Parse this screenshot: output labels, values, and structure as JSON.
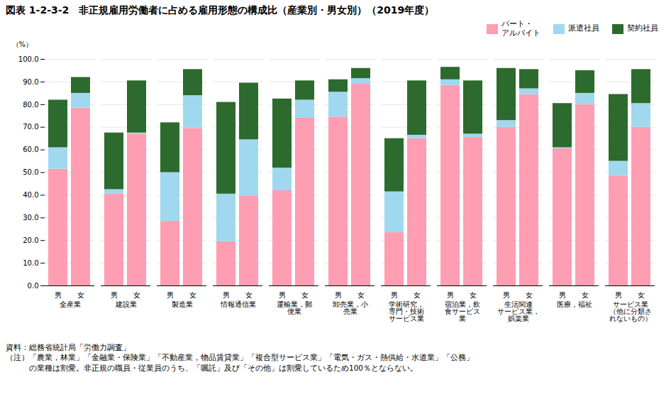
{
  "chart_data": {
    "type": "bar",
    "stacked": true,
    "title": "図表 1-2-3-2　非正規雇用労働者に占める雇用形態の構成比（産業別・男女別）（2019年度）",
    "ylabel": "（%）",
    "categories": [
      "全産業",
      "建設業",
      "製造業",
      "情報通信業",
      "運輸業，郵\n便業",
      "卸売業，小\n売業",
      "学術研究，\n専門・技術\nサービス業",
      "宿泊業，飲\n食サービス\n業",
      "生活関連\nサービス業，\n娯楽業",
      "医療，福祉",
      "サービス業\n（他に分類さ\nれないもの）"
    ],
    "subcategories": [
      "男",
      "女"
    ],
    "series": [
      {
        "name": "パート・\nアルバイト",
        "color": "#FF9DB3",
        "values": [
          [
            51.5,
            78.5
          ],
          [
            40.5,
            67.0
          ],
          [
            28.5,
            69.5
          ],
          [
            19.5,
            39.5
          ],
          [
            42.0,
            74.0
          ],
          [
            74.5,
            89.0
          ],
          [
            23.5,
            65.0
          ],
          [
            88.5,
            65.5
          ],
          [
            70.0,
            84.5
          ],
          [
            60.5,
            80.0
          ],
          [
            48.5,
            70.0
          ]
        ]
      },
      {
        "name": "派遣社員",
        "color": "#A0D8EF",
        "values": [
          [
            9.5,
            6.5
          ],
          [
            2.0,
            0.5
          ],
          [
            21.5,
            14.5
          ],
          [
            21.0,
            25.0
          ],
          [
            10.0,
            8.0
          ],
          [
            11.0,
            2.5
          ],
          [
            18.0,
            1.5
          ],
          [
            2.5,
            1.5
          ],
          [
            3.0,
            2.5
          ],
          [
            0.5,
            5.0
          ],
          [
            6.5,
            10.5
          ]
        ]
      },
      {
        "name": "契約社員",
        "color": "#2D6A2D",
        "values": [
          [
            21.0,
            7.0
          ],
          [
            25.0,
            23.0
          ],
          [
            22.0,
            11.5
          ],
          [
            40.5,
            25.0
          ],
          [
            30.5,
            8.5
          ],
          [
            5.5,
            4.5
          ],
          [
            23.5,
            24.0
          ],
          [
            5.5,
            23.5
          ],
          [
            23.0,
            8.5
          ],
          [
            19.5,
            10.0
          ],
          [
            29.5,
            15.0
          ]
        ]
      }
    ],
    "ylim": [
      0,
      100
    ],
    "yticks": [
      {
        "value": 0,
        "label": "0.0"
      },
      {
        "value": 10,
        "label": "10.0"
      },
      {
        "value": 20,
        "label": "20.0"
      },
      {
        "value": 30,
        "label": "30.0"
      },
      {
        "value": 40,
        "label": "40.0"
      },
      {
        "value": 50,
        "label": "50.0"
      },
      {
        "value": 60,
        "label": "60.0"
      },
      {
        "value": 70,
        "label": "70.0"
      },
      {
        "value": 80,
        "label": "80.0"
      },
      {
        "value": 90,
        "label": "90.0"
      },
      {
        "value": 100,
        "label": "100.0"
      }
    ],
    "grid": true,
    "legend": "upper right",
    "annotations": [
      "資料：総務省統計局「労働力調査」",
      "（注）「農業，林業」「金融業・保険業」「不動産業，物品賃貸業」「複合型サービス業」「電気・ガス・熱供給・水道業」「公務」",
      "　　　の業種は割愛。非正規の職員・従業員のうち、「嘱託」及び「その他」は割愛しているため100％とならない。"
    ]
  }
}
